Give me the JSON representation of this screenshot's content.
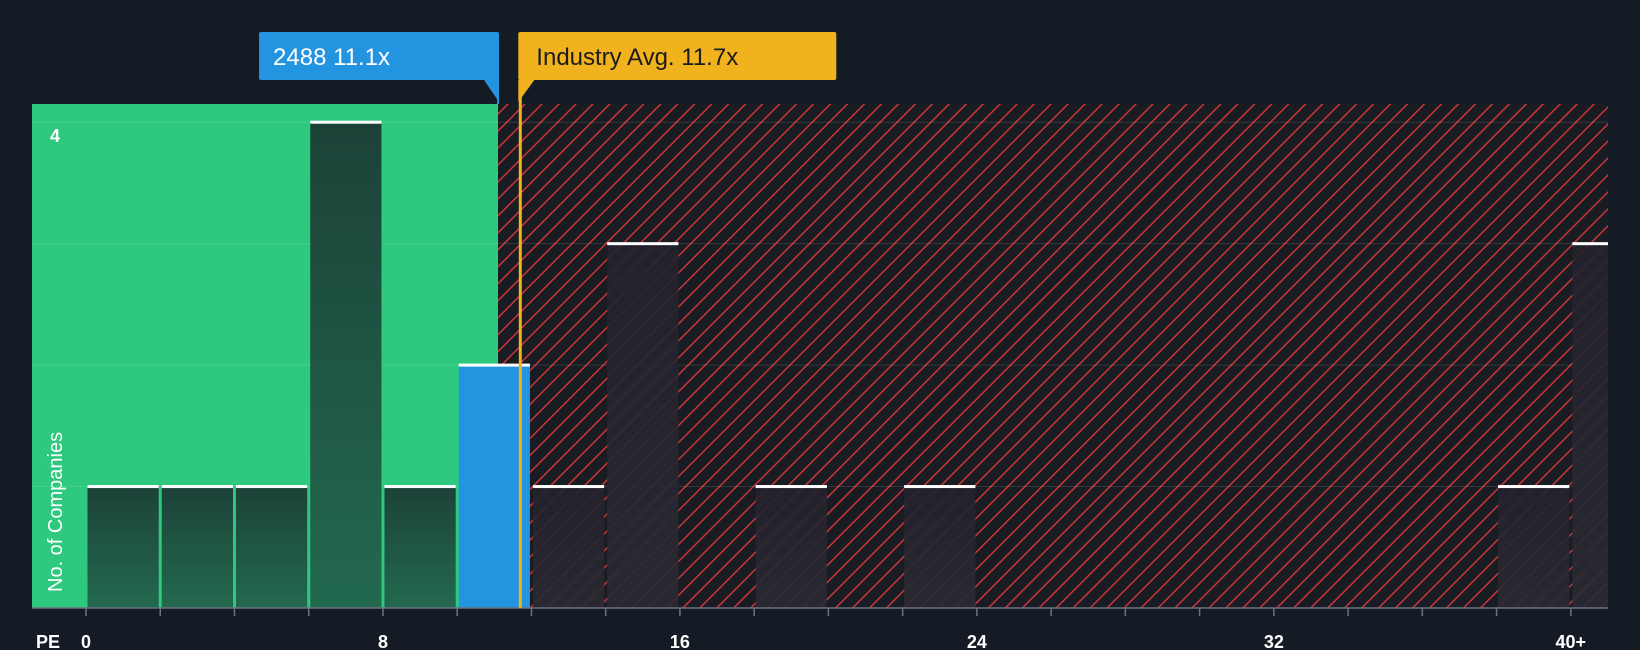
{
  "chart_data": {
    "type": "bar",
    "title": "",
    "xlabel": "PE",
    "ylabel": "No. of Companies",
    "xlim": [
      0,
      41.5
    ],
    "ylim": [
      0,
      4.15
    ],
    "bin_width": 2,
    "x_ticks": [
      {
        "value": 0,
        "label": "0"
      },
      {
        "value": 8,
        "label": "8"
      },
      {
        "value": 16,
        "label": "16"
      },
      {
        "value": 24,
        "label": "24"
      },
      {
        "value": 32,
        "label": "32"
      },
      {
        "value": 40,
        "label": "40+"
      }
    ],
    "y_ticks": [
      {
        "value": 4,
        "label": "4"
      }
    ],
    "bins": [
      {
        "start": 0,
        "end": 2,
        "count": 1
      },
      {
        "start": 2,
        "end": 4,
        "count": 1
      },
      {
        "start": 4,
        "end": 6,
        "count": 1
      },
      {
        "start": 6,
        "end": 8,
        "count": 4
      },
      {
        "start": 8,
        "end": 10,
        "count": 1
      },
      {
        "start": 10,
        "end": 12,
        "count": 2,
        "highlight": true
      },
      {
        "start": 12,
        "end": 14,
        "count": 1
      },
      {
        "start": 14,
        "end": 16,
        "count": 3
      },
      {
        "start": 16,
        "end": 18,
        "count": 0
      },
      {
        "start": 18,
        "end": 20,
        "count": 1
      },
      {
        "start": 20,
        "end": 22,
        "count": 0
      },
      {
        "start": 22,
        "end": 24,
        "count": 1
      },
      {
        "start": 24,
        "end": 26,
        "count": 0
      },
      {
        "start": 26,
        "end": 28,
        "count": 0
      },
      {
        "start": 28,
        "end": 30,
        "count": 0
      },
      {
        "start": 30,
        "end": 32,
        "count": 0
      },
      {
        "start": 32,
        "end": 34,
        "count": 0
      },
      {
        "start": 34,
        "end": 36,
        "count": 0
      },
      {
        "start": 36,
        "end": 38,
        "count": 0
      },
      {
        "start": 38,
        "end": 40,
        "count": 1
      },
      {
        "start": 40,
        "end": 42,
        "count": 3
      }
    ],
    "company": {
      "label": "2488 11.1x",
      "pe": 11.1,
      "color": "#2394df"
    },
    "industry_avg": {
      "label": "Industry Avg. 11.7x",
      "pe": 11.7,
      "color": "#f0b31e"
    },
    "colors": {
      "background": "#151b24",
      "undervalued_region": "#2ec97f",
      "overvalued_hatch": "#e0383d",
      "bar_undervalued": "#1f4a3e",
      "bar_overvalued": "#28262f",
      "bar_top": "#ffffff"
    },
    "grid": true
  }
}
